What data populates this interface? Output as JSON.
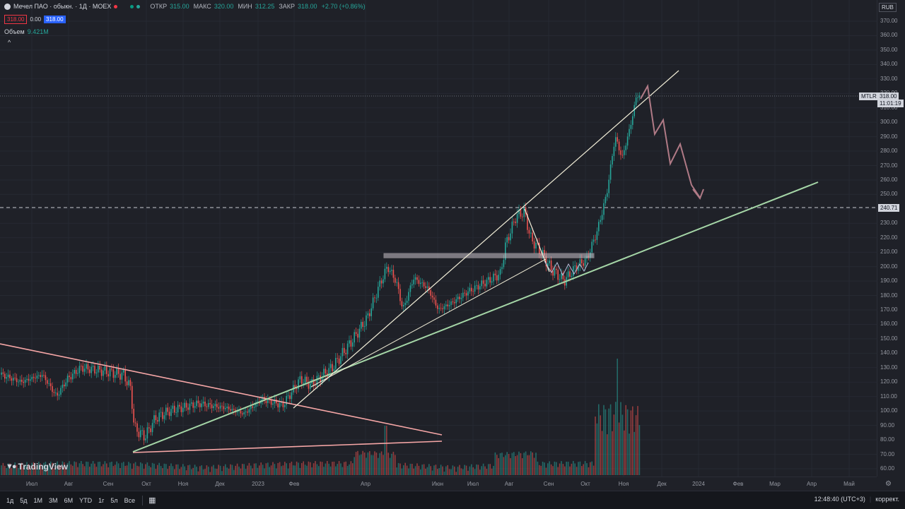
{
  "header": {
    "symbol_title": "Мечел ПАО · обыкн. · 1Д · MOEX",
    "ohlc": [
      {
        "k": "ОТКР",
        "v": "315.00"
      },
      {
        "k": "МАКС",
        "v": "320.00"
      },
      {
        "k": "МИН",
        "v": "312.25"
      },
      {
        "k": "ЗАКР",
        "v": "318.00"
      }
    ],
    "change": "+2.70 (+0.86%)",
    "bid": "318.00",
    "spread": "0.00",
    "ask": "318.00",
    "volume_label": "Объем",
    "volume_value": "9.421M",
    "currency": "RUB",
    "chevron": "^"
  },
  "price_axis": {
    "ticks": [
      "370.00",
      "360.00",
      "350.00",
      "340.00",
      "330.00",
      "320.00",
      "310.00",
      "300.00",
      "290.00",
      "280.00",
      "270.00",
      "260.00",
      "250.00",
      "240.00",
      "230.00",
      "220.00",
      "210.00",
      "200.00",
      "190.00",
      "180.00",
      "170.00",
      "160.00",
      "150.00",
      "140.00",
      "130.00",
      "120.00",
      "110.00",
      "100.00",
      "90.00",
      "80.00",
      "70.00",
      "60.00"
    ],
    "last_price_label": "318.00",
    "countdown": "11:01:19",
    "ticker_tag": "MTLR",
    "hline_label": "240.71"
  },
  "time_axis": {
    "ticks": [
      "Июл",
      "Авг",
      "Сен",
      "Окт",
      "Ноя",
      "Дек",
      "2023",
      "Фев",
      "Апр",
      "Июн",
      "Июл",
      "Авг",
      "Сен",
      "Окт",
      "Ноя",
      "Дек",
      "2024",
      "Фев",
      "Мар",
      "Апр",
      "Май"
    ]
  },
  "bottom_bar": {
    "timeframes": [
      "1д",
      "5д",
      "1М",
      "3М",
      "6М",
      "YTD",
      "1г",
      "5л",
      "Все"
    ],
    "clock": "12:48:40 (UTC+3)",
    "mode": "коррект."
  },
  "branding": {
    "name": "TradingView"
  },
  "colors": {
    "up": "#26a69a",
    "down": "#ef5350",
    "trend_green": "#a5d6a7",
    "trend_pink": "#f7a7a7",
    "trend_white": "#f2eed8",
    "projection": "#b07a86"
  },
  "chart_data": {
    "type": "candlestick",
    "ylim": [
      55,
      375
    ],
    "price_levels": {
      "last": 318.0,
      "horizontal_line": 240.71
    },
    "x_labels": [
      "Июл",
      "Авг",
      "Сен",
      "Окт",
      "Ноя",
      "Дек",
      "2023",
      "Фев",
      "Апр",
      "Июн",
      "Июл",
      "Авг",
      "Сен",
      "Окт",
      "Ноя",
      "Дек",
      "2024",
      "Фев",
      "Мар",
      "Апр",
      "Май"
    ],
    "approx_closes_by_label": [
      {
        "label": "Июл",
        "value": 125
      },
      {
        "label": "Авг",
        "value": 128
      },
      {
        "label": "Сен",
        "value": 128
      },
      {
        "label": "Окт",
        "value": 88
      },
      {
        "label": "Ноя",
        "value": 103
      },
      {
        "label": "Дек",
        "value": 100
      },
      {
        "label": "2023",
        "value": 105
      },
      {
        "label": "Фев",
        "value": 118
      },
      {
        "label": "Апр",
        "value": 170
      },
      {
        "label": "Июн",
        "value": 170
      },
      {
        "label": "Июл",
        "value": 185
      },
      {
        "label": "Авг",
        "value": 235
      },
      {
        "label": "Сен",
        "value": 192
      },
      {
        "label": "Окт",
        "value": 210
      },
      {
        "label": "Ноя",
        "value": 318
      }
    ],
    "resistance_zone": [
      206,
      209
    ]
  }
}
